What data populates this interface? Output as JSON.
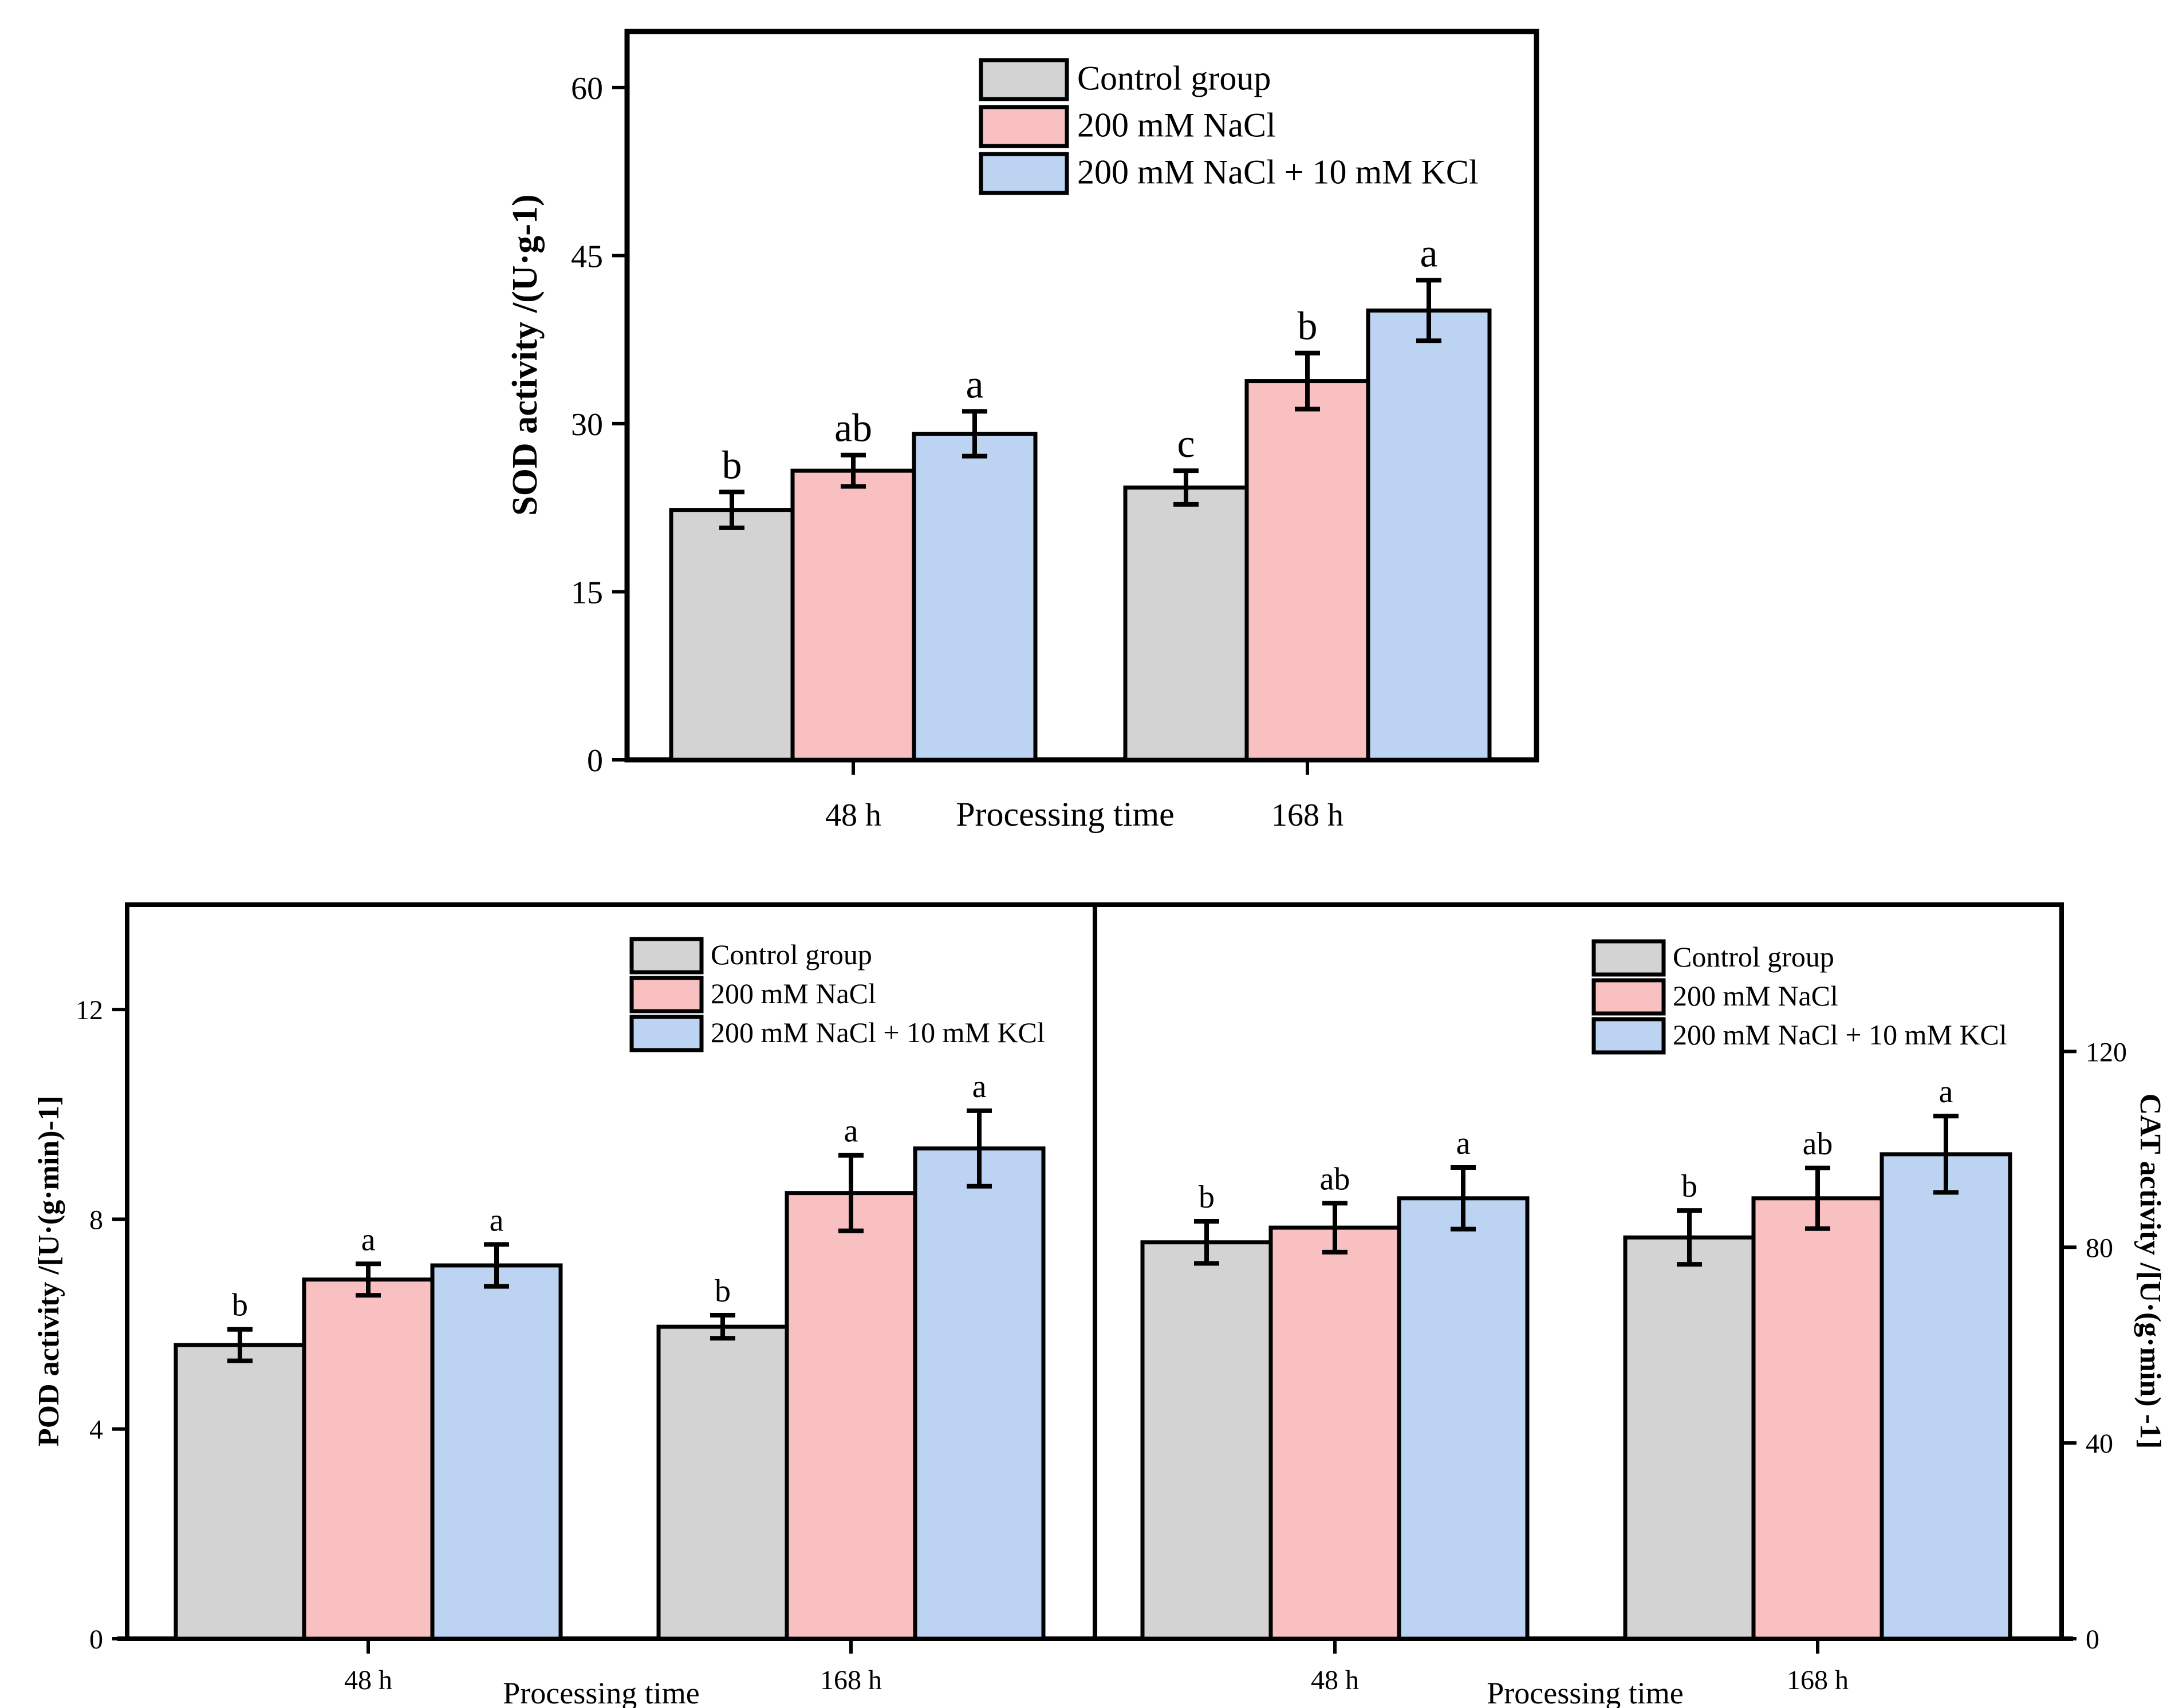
{
  "chart_data": [
    {
      "id": "sod",
      "type": "bar",
      "categories": [
        "48 h",
        "168 h"
      ],
      "xlabel": "Processing time",
      "ylabel": "SOD activity /(U·g-1)",
      "ylim": [
        0,
        65
      ],
      "yticks": [
        0,
        15,
        30,
        45,
        60
      ],
      "legend_position": "top-right",
      "series": [
        {
          "name": "Control group",
          "color": "#d3d3d3",
          "values": [
            22.3,
            24.3
          ],
          "errors": [
            1.6,
            1.5
          ],
          "labels": [
            "b",
            "c"
          ]
        },
        {
          "name": "200 mM NaCl",
          "color": "#f8c0c1",
          "values": [
            25.8,
            33.8
          ],
          "errors": [
            1.4,
            2.5
          ],
          "labels": [
            "ab",
            "b"
          ]
        },
        {
          "name": "200 mM NaCl + 10 mM KCl",
          "color": "#bcd3f2",
          "values": [
            29.1,
            40.1
          ],
          "errors": [
            2.0,
            2.7
          ],
          "labels": [
            "a",
            "a"
          ]
        }
      ]
    },
    {
      "id": "pod",
      "type": "bar",
      "categories": [
        "48 h",
        "168 h"
      ],
      "xlabel": "Processing time",
      "ylabel": "POD activity /[U·(g·min)-1]",
      "ylim": [
        0,
        14
      ],
      "yticks": [
        0,
        4,
        8,
        12
      ],
      "legend_position": "top-right",
      "series": [
        {
          "name": "Control group",
          "color": "#d3d3d3",
          "values": [
            5.6,
            5.95
          ],
          "errors": [
            0.3,
            0.22
          ],
          "labels": [
            "b",
            "b"
          ]
        },
        {
          "name": "200 mM NaCl",
          "color": "#f8c0c1",
          "values": [
            6.85,
            8.5
          ],
          "errors": [
            0.3,
            0.72
          ],
          "labels": [
            "a",
            "a"
          ]
        },
        {
          "name": "200 mM NaCl + 10 mM KCl",
          "color": "#bcd3f2",
          "values": [
            7.12,
            9.35
          ],
          "errors": [
            0.4,
            0.72
          ],
          "labels": [
            "a",
            "a"
          ]
        }
      ]
    },
    {
      "id": "cat",
      "type": "bar",
      "categories": [
        "48 h",
        "168 h"
      ],
      "xlabel": "Processing time",
      "ylabel": "CAT activity /[U·(g·min) -1]",
      "ylim": [
        0,
        150
      ],
      "yticks": [
        0,
        40,
        80,
        120
      ],
      "yaxis_side": "right",
      "legend_position": "top-right",
      "series": [
        {
          "name": "Control group",
          "color": "#d3d3d3",
          "values": [
            81,
            82
          ],
          "errors": [
            4.3,
            5.5
          ],
          "labels": [
            "b",
            "b"
          ]
        },
        {
          "name": "200 mM NaCl",
          "color": "#f8c0c1",
          "values": [
            84,
            90
          ],
          "errors": [
            5.0,
            6.2
          ],
          "labels": [
            "ab",
            "ab"
          ]
        },
        {
          "name": "200 mM NaCl + 10 mM KCl",
          "color": "#bcd3f2",
          "values": [
            90,
            99
          ],
          "errors": [
            6.3,
            7.8
          ],
          "labels": [
            "a",
            "a"
          ]
        }
      ]
    }
  ]
}
